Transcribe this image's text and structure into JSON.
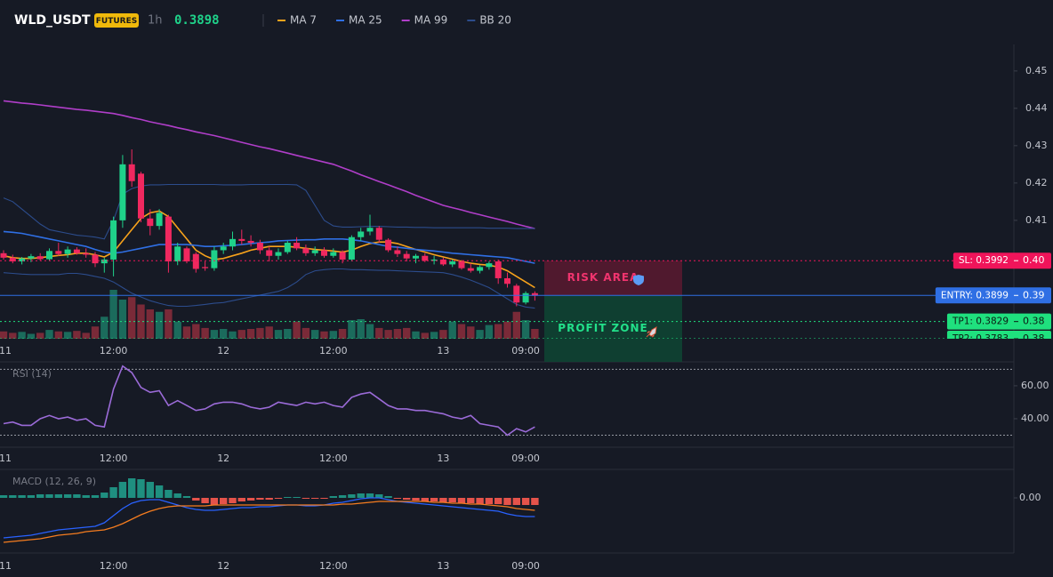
{
  "chart_data": [
    {
      "type": "candlestick",
      "title": "WLD_USDT",
      "badge": "FUTURES",
      "interval": "1h",
      "last_price": 0.3898,
      "categories": [
        "11",
        null,
        null,
        null,
        null,
        null,
        null,
        null,
        null,
        null,
        null,
        null,
        "12:00",
        null,
        null,
        null,
        null,
        null,
        null,
        null,
        null,
        null,
        null,
        null,
        "12",
        null,
        null,
        null,
        null,
        null,
        null,
        null,
        null,
        null,
        null,
        null,
        "12:00",
        null,
        null,
        null,
        null,
        null,
        null,
        null,
        null,
        null,
        null,
        null,
        "13",
        null,
        null,
        null,
        null,
        null,
        null,
        null,
        null,
        "09:00",
        null
      ],
      "open": [
        0.4012,
        0.4,
        0.399,
        0.3998,
        0.4004,
        0.3996,
        0.4018,
        0.401,
        0.4022,
        0.4012,
        0.4008,
        0.3985,
        0.3995,
        0.41,
        0.425,
        0.4225,
        0.4105,
        0.4085,
        0.411,
        0.399,
        0.4025,
        0.401,
        0.3975,
        0.3972,
        0.402,
        0.403,
        0.405,
        0.4045,
        0.404,
        0.402,
        0.4005,
        0.4015,
        0.404,
        0.4025,
        0.4012,
        0.402,
        0.4005,
        0.4015,
        0.3995,
        0.4055,
        0.407,
        0.408,
        0.4048,
        0.402,
        0.401,
        0.3998,
        0.4005,
        0.3992,
        0.3995,
        0.3982,
        0.399,
        0.3972,
        0.3965,
        0.3975,
        0.399,
        0.3945,
        0.3925,
        0.388,
        0.3905
      ],
      "high": [
        0.402,
        0.4008,
        0.4002,
        0.401,
        0.4012,
        0.4025,
        0.404,
        0.403,
        0.4028,
        0.4025,
        0.4015,
        0.4,
        0.411,
        0.4275,
        0.429,
        0.423,
        0.413,
        0.413,
        0.4115,
        0.404,
        0.403,
        0.4015,
        0.399,
        0.403,
        0.404,
        0.407,
        0.4075,
        0.406,
        0.4048,
        0.403,
        0.4025,
        0.4045,
        0.4055,
        0.4035,
        0.403,
        0.4028,
        0.4025,
        0.402,
        0.406,
        0.408,
        0.4115,
        0.4085,
        0.4052,
        0.403,
        0.4018,
        0.401,
        0.4012,
        0.4005,
        0.4,
        0.3995,
        0.3994,
        0.3985,
        0.398,
        0.399,
        0.3995,
        0.396,
        0.393,
        0.391,
        0.391
      ],
      "low": [
        0.3995,
        0.3985,
        0.3982,
        0.3988,
        0.3992,
        0.3992,
        0.4005,
        0.4,
        0.4008,
        0.4,
        0.3975,
        0.396,
        0.395,
        0.408,
        0.419,
        0.4095,
        0.406,
        0.4075,
        0.396,
        0.398,
        0.3985,
        0.396,
        0.3965,
        0.3965,
        0.401,
        0.402,
        0.4035,
        0.403,
        0.401,
        0.399,
        0.3995,
        0.401,
        0.402,
        0.4005,
        0.4005,
        0.4,
        0.4,
        0.3985,
        0.399,
        0.4045,
        0.406,
        0.404,
        0.4015,
        0.4002,
        0.399,
        0.3985,
        0.3988,
        0.3982,
        0.3978,
        0.3975,
        0.3968,
        0.396,
        0.3958,
        0.3968,
        0.393,
        0.392,
        0.387,
        0.3875,
        0.3885
      ],
      "close": [
        0.4,
        0.399,
        0.3998,
        0.4004,
        0.3996,
        0.4018,
        0.401,
        0.4022,
        0.4012,
        0.4008,
        0.3985,
        0.3995,
        0.41,
        0.425,
        0.4205,
        0.4105,
        0.4085,
        0.412,
        0.399,
        0.403,
        0.399,
        0.397,
        0.3972,
        0.402,
        0.403,
        0.405,
        0.4045,
        0.404,
        0.402,
        0.4005,
        0.4015,
        0.404,
        0.4025,
        0.4012,
        0.402,
        0.4005,
        0.4015,
        0.3995,
        0.4055,
        0.407,
        0.408,
        0.4048,
        0.402,
        0.401,
        0.3998,
        0.4005,
        0.3992,
        0.3995,
        0.3982,
        0.399,
        0.3972,
        0.3965,
        0.3975,
        0.3985,
        0.3945,
        0.393,
        0.388,
        0.3905,
        0.3898
      ],
      "volume": [
        15,
        12,
        14,
        10,
        12,
        18,
        15,
        14,
        16,
        12,
        25,
        45,
        100,
        80,
        85,
        70,
        60,
        55,
        60,
        35,
        25,
        30,
        22,
        18,
        20,
        15,
        18,
        20,
        22,
        25,
        18,
        20,
        35,
        22,
        18,
        15,
        16,
        20,
        38,
        40,
        30,
        22,
        18,
        20,
        22,
        15,
        12,
        14,
        18,
        35,
        30,
        25,
        18,
        28,
        30,
        35,
        55,
        38,
        20
      ],
      "up_color": "#1fd28a",
      "down_color": "#f0285f",
      "volume_up_color": "#1b6b5c",
      "volume_down_color": "#7a2a38",
      "series": [
        {
          "name": "MA 7",
          "color": "#f7a21b",
          "values": [
            0.4005,
            0.4,
            0.3998,
            0.3998,
            0.4,
            0.4003,
            0.4006,
            0.4008,
            0.4012,
            0.4012,
            0.4008,
            0.4002,
            0.4015,
            0.4045,
            0.4075,
            0.4105,
            0.412,
            0.4125,
            0.411,
            0.408,
            0.405,
            0.402,
            0.4005,
            0.3995,
            0.3998,
            0.4005,
            0.4012,
            0.402,
            0.4025,
            0.403,
            0.403,
            0.403,
            0.4028,
            0.4025,
            0.4022,
            0.402,
            0.4018,
            0.4015,
            0.402,
            0.403,
            0.4038,
            0.4042,
            0.4042,
            0.4038,
            0.403,
            0.4022,
            0.4015,
            0.4008,
            0.4002,
            0.3996,
            0.399,
            0.3985,
            0.3982,
            0.398,
            0.3975,
            0.3965,
            0.395,
            0.3935,
            0.392
          ]
        },
        {
          "name": "MA 25",
          "color": "#2f6fe4",
          "values": [
            0.407,
            0.4068,
            0.4065,
            0.406,
            0.4055,
            0.405,
            0.4045,
            0.404,
            0.4035,
            0.403,
            0.4022,
            0.4015,
            0.4012,
            0.4015,
            0.402,
            0.4025,
            0.403,
            0.4035,
            0.4035,
            0.4035,
            0.4035,
            0.4033,
            0.403,
            0.403,
            0.4032,
            0.4033,
            0.4035,
            0.4038,
            0.404,
            0.4042,
            0.4045,
            0.4046,
            0.4047,
            0.4048,
            0.4048,
            0.405,
            0.405,
            0.405,
            0.4048,
            0.4045,
            0.404,
            0.4035,
            0.403,
            0.4028,
            0.4025,
            0.4022,
            0.402,
            0.4018,
            0.4015,
            0.4012,
            0.401,
            0.4008,
            0.4006,
            0.4004,
            0.4002,
            0.4,
            0.3995,
            0.399,
            0.3985
          ]
        },
        {
          "name": "MA 99",
          "color": "#b03ec9",
          "values": [
            0.442,
            0.4417,
            0.4414,
            0.4412,
            0.4409,
            0.4406,
            0.4403,
            0.44,
            0.4397,
            0.4395,
            0.4392,
            0.4389,
            0.4386,
            0.4381,
            0.4375,
            0.437,
            0.4364,
            0.4359,
            0.4354,
            0.4348,
            0.4343,
            0.4337,
            0.4332,
            0.4327,
            0.4321,
            0.4315,
            0.4309,
            0.4303,
            0.4297,
            0.4292,
            0.4286,
            0.428,
            0.4274,
            0.4268,
            0.4262,
            0.4256,
            0.425,
            0.4241,
            0.4232,
            0.4222,
            0.4213,
            0.4204,
            0.4195,
            0.4186,
            0.4177,
            0.4167,
            0.4158,
            0.4149,
            0.414,
            0.4134,
            0.4128,
            0.4121,
            0.4115,
            0.4109,
            0.4103,
            0.4097,
            0.409,
            0.4084,
            0.4078
          ]
        },
        {
          "name": "BB 20",
          "color": "#2c4c8c",
          "upper": [
            0.416,
            0.415,
            0.413,
            0.411,
            0.409,
            0.4075,
            0.407,
            0.4065,
            0.406,
            0.4058,
            0.4055,
            0.405,
            0.41,
            0.417,
            0.4185,
            0.4192,
            0.4195,
            0.4195,
            0.4196,
            0.4196,
            0.4196,
            0.4196,
            0.4196,
            0.4196,
            0.4195,
            0.4195,
            0.4195,
            0.4196,
            0.4196,
            0.4196,
            0.4196,
            0.4196,
            0.4195,
            0.418,
            0.414,
            0.41,
            0.4085,
            0.4082,
            0.4082,
            0.4083,
            0.4084,
            0.4084,
            0.4083,
            0.4082,
            0.4082,
            0.4081,
            0.4081,
            0.408,
            0.408,
            0.408,
            0.408,
            0.408,
            0.408,
            0.4079,
            0.4079,
            0.4079,
            0.4078,
            0.4078,
            0.4078
          ],
          "lower": [
            0.396,
            0.3958,
            0.3956,
            0.3955,
            0.3955,
            0.3955,
            0.3955,
            0.3958,
            0.3958,
            0.3955,
            0.395,
            0.3945,
            0.3935,
            0.392,
            0.3905,
            0.3895,
            0.3885,
            0.3878,
            0.3872,
            0.387,
            0.387,
            0.3872,
            0.3875,
            0.3878,
            0.388,
            0.3885,
            0.389,
            0.3895,
            0.39,
            0.3905,
            0.391,
            0.392,
            0.3935,
            0.3955,
            0.3965,
            0.3968,
            0.397,
            0.397,
            0.3968,
            0.3968,
            0.3967,
            0.3966,
            0.3966,
            0.3965,
            0.3964,
            0.3963,
            0.3962,
            0.3961,
            0.396,
            0.3955,
            0.3948,
            0.394,
            0.393,
            0.392,
            0.3905,
            0.389,
            0.3875,
            0.3868,
            0.3865
          ]
        }
      ],
      "ylim": [
        0.3783,
        0.4571
      ],
      "yticks": [
        0.41,
        0.42,
        0.43,
        0.44,
        0.45
      ],
      "levels": [
        {
          "tag": "SL: 0.3992",
          "value": 0.3992,
          "axis_label": "0.40",
          "color": "#f0145a",
          "text_color": "#ffffff",
          "style": "dotted"
        },
        {
          "tag": "ENTRY: 0.3899",
          "value": 0.3899,
          "axis_label": "0.39",
          "color": "#2f6fe4",
          "text_color": "#ffffff",
          "style": "solid"
        },
        {
          "tag": "TP1: 0.3829",
          "value": 0.3829,
          "axis_label": "0.38",
          "color": "#1fe07e",
          "text_color": "#0b1a12",
          "style": "dotted"
        },
        {
          "tag": "TP2: 0.3783",
          "value": 0.3783,
          "axis_label": "0.38",
          "color": "#1fe07e",
          "text_color": "#0b1a12",
          "style": "dotted"
        }
      ],
      "zones": [
        {
          "label": "RISK AREA",
          "from": 0.3992,
          "to": 0.3899,
          "color": "#5a1a30",
          "text_color": "#f0346e"
        },
        {
          "label": "PROFIT ZONE",
          "from": 0.3899,
          "to": 0.3783,
          "color": "#0e4634",
          "text_color": "#22e08a"
        }
      ]
    },
    {
      "type": "line",
      "title": "RSI (14)",
      "categories": [
        "11",
        null,
        null,
        null,
        null,
        null,
        null,
        null,
        null,
        null,
        null,
        null,
        "12:00",
        null,
        null,
        null,
        null,
        null,
        null,
        null,
        null,
        null,
        null,
        null,
        "12",
        null,
        null,
        null,
        null,
        null,
        null,
        null,
        null,
        null,
        null,
        null,
        "12:00",
        null,
        null,
        null,
        null,
        null,
        null,
        null,
        null,
        null,
        null,
        null,
        "13",
        null,
        null,
        null,
        null,
        null,
        null,
        null,
        null,
        "09:00",
        null
      ],
      "values": [
        37,
        38,
        36,
        36,
        40,
        42,
        40,
        41,
        39,
        40,
        36,
        35,
        58,
        72,
        68,
        59,
        56,
        57,
        48,
        51,
        48,
        45,
        46,
        49,
        50,
        50,
        49,
        47,
        46,
        47,
        50,
        49,
        48,
        50,
        49,
        50,
        48,
        47,
        53,
        55,
        56,
        52,
        48,
        46,
        46,
        45,
        45,
        44,
        43,
        41,
        40,
        42,
        37,
        36,
        35,
        30,
        34,
        32,
        35
      ],
      "color": "#9b6bd8",
      "bands": [
        70,
        30
      ],
      "ylim": [
        22.7,
        74
      ],
      "yticks": [
        {
          "value": 60,
          "label": "60.00"
        },
        {
          "value": 40,
          "label": "40.00"
        }
      ]
    },
    {
      "type": "macd",
      "title": "MACD (12, 26, 9)",
      "categories": [
        "11",
        null,
        null,
        null,
        null,
        null,
        null,
        null,
        null,
        null,
        null,
        null,
        "12:00",
        null,
        null,
        null,
        null,
        null,
        null,
        null,
        null,
        null,
        null,
        null,
        "12",
        null,
        null,
        null,
        null,
        null,
        null,
        null,
        null,
        null,
        null,
        null,
        "12:00",
        null,
        null,
        null,
        null,
        null,
        null,
        null,
        null,
        null,
        null,
        null,
        "13",
        null,
        null,
        null,
        null,
        null,
        null,
        null,
        null,
        "09:00",
        null
      ],
      "histogram": [
        0.0003,
        0.0003,
        0.0003,
        0.0003,
        0.0004,
        0.0004,
        0.0004,
        0.0004,
        0.0004,
        0.0003,
        0.0003,
        0.0006,
        0.0012,
        0.0018,
        0.0022,
        0.0021,
        0.0018,
        0.0014,
        0.0009,
        0.0005,
        0.0002,
        -0.0003,
        -0.0006,
        -0.0008,
        -0.0007,
        -0.0006,
        -0.0004,
        -0.0003,
        -0.0002,
        -0.0002,
        -0.0001,
        0.0001,
        0.0001,
        -0.0001,
        -0.0001,
        -0.0001,
        0.0002,
        0.0003,
        0.0004,
        0.0005,
        0.0005,
        0.0004,
        0.0002,
        -0.0001,
        -0.0002,
        -0.0003,
        -0.0004,
        -0.0004,
        -0.0005,
        -0.0005,
        -0.0006,
        -0.0006,
        -0.0007,
        -0.0007,
        -0.0007,
        -0.0008,
        -0.0008,
        -0.0008,
        -0.0008
      ],
      "macd": [
        -0.0045,
        -0.0044,
        -0.0043,
        -0.0042,
        -0.004,
        -0.0038,
        -0.0036,
        -0.0035,
        -0.0034,
        -0.0033,
        -0.0032,
        -0.0028,
        -0.002,
        -0.0012,
        -0.0006,
        -0.0003,
        -0.0002,
        -0.0002,
        -0.0005,
        -0.0008,
        -0.0011,
        -0.0013,
        -0.0014,
        -0.0014,
        -0.0013,
        -0.0012,
        -0.0011,
        -0.0011,
        -0.001,
        -0.001,
        -0.0009,
        -0.0008,
        -0.0008,
        -0.0009,
        -0.0009,
        -0.0008,
        -0.0006,
        -0.0005,
        -0.0003,
        -0.0001,
        0.0,
        0.0,
        -0.0002,
        -0.0004,
        -0.0005,
        -0.0006,
        -0.0007,
        -0.0008,
        -0.0009,
        -0.001,
        -0.0011,
        -0.0012,
        -0.0013,
        -0.0014,
        -0.0015,
        -0.0018,
        -0.002,
        -0.0021,
        -0.0021
      ],
      "signal": [
        -0.005,
        -0.0049,
        -0.0048,
        -0.0047,
        -0.0046,
        -0.0044,
        -0.0042,
        -0.0041,
        -0.004,
        -0.0038,
        -0.0037,
        -0.0036,
        -0.0033,
        -0.0029,
        -0.0024,
        -0.0019,
        -0.0015,
        -0.0012,
        -0.001,
        -0.0009,
        -0.0009,
        -0.0009,
        -0.0009,
        -0.0008,
        -0.0008,
        -0.0008,
        -0.0008,
        -0.0008,
        -0.0008,
        -0.0008,
        -0.0008,
        -0.0008,
        -0.0008,
        -0.0008,
        -0.0008,
        -0.0008,
        -0.0008,
        -0.0007,
        -0.0007,
        -0.0006,
        -0.0005,
        -0.0004,
        -0.0004,
        -0.0004,
        -0.0004,
        -0.0004,
        -0.0004,
        -0.0005,
        -0.0005,
        -0.0006,
        -0.0006,
        -0.0007,
        -0.0007,
        -0.0008,
        -0.0009,
        -0.001,
        -0.0012,
        -0.0013,
        -0.0014
      ],
      "macd_color": "#2962ff",
      "signal_color": "#f57c1f",
      "up_color": "#1f8f80",
      "down_color": "#e5534b",
      "ylim": [
        -0.0062,
        0.0032
      ],
      "yticks": [
        {
          "value": 0,
          "label": "0.00"
        }
      ]
    }
  ]
}
